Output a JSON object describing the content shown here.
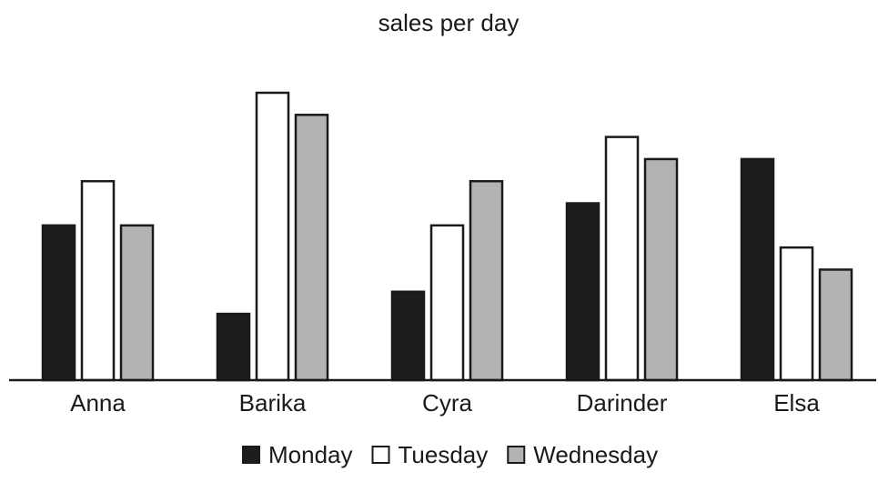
{
  "chart_data": {
    "type": "bar",
    "title": "sales per day",
    "xlabel": "",
    "ylabel": "",
    "categories": [
      "Anna",
      "Barika",
      "Cyra",
      "Darinder",
      "Elsa"
    ],
    "series": [
      {
        "name": "Monday",
        "values": [
          7,
          3,
          4,
          8,
          10
        ]
      },
      {
        "name": "Tuesday",
        "values": [
          9,
          13,
          7,
          11,
          6
        ]
      },
      {
        "name": "Wednesday",
        "values": [
          7,
          12,
          9,
          10,
          5
        ]
      }
    ],
    "ylim": [
      0,
      13
    ],
    "y_axis_visible": false,
    "grid": false,
    "legend_position": "bottom",
    "colors": {
      "Monday": "#1d1d1d",
      "Tuesday": "#ffffff",
      "Wednesday": "#b3b3b3",
      "outline": "#1a1a1a"
    }
  }
}
